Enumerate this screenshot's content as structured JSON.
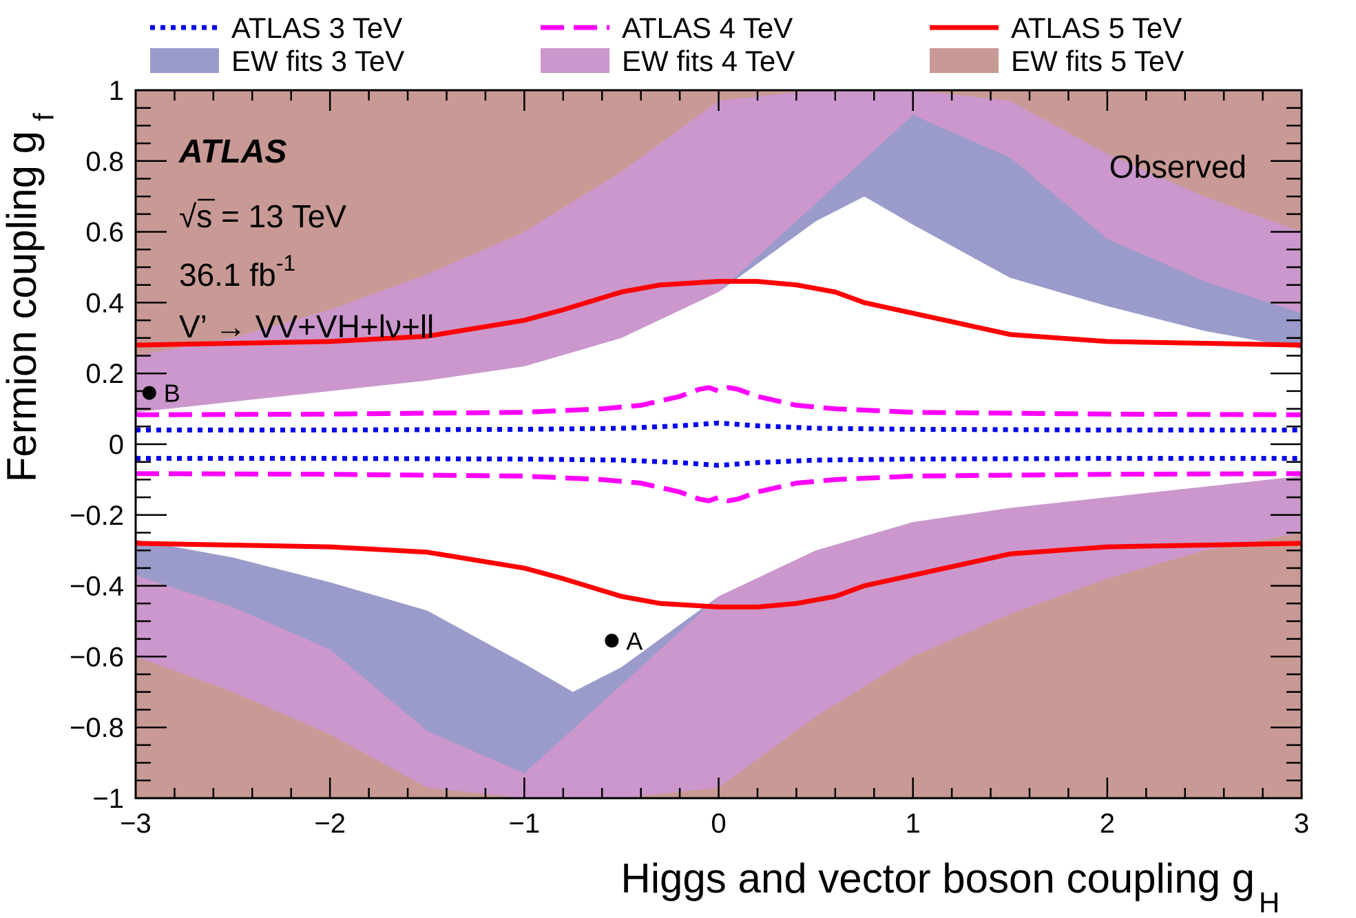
{
  "chart_data": {
    "type": "area",
    "title": "",
    "xlabel": "Higgs and vector boson coupling g",
    "xlabel_sub": "H",
    "ylabel": "Fermion coupling g",
    "ylabel_sub": "f",
    "xlim": [
      -3,
      3
    ],
    "ylim": [
      -1,
      1
    ],
    "x_ticks": [
      -3,
      -2,
      -1,
      0,
      1,
      2,
      3
    ],
    "x_tick_labels": [
      "−3",
      "−2",
      "−1",
      "0",
      "1",
      "2",
      "3"
    ],
    "y_ticks": [
      -1,
      -0.8,
      -0.6,
      -0.4,
      -0.2,
      0,
      0.2,
      0.4,
      0.6,
      0.8,
      1
    ],
    "y_tick_labels": [
      "−1",
      "−0.8",
      "−0.6",
      "−0.4",
      "−0.2",
      "0",
      "0.2",
      "0.4",
      "0.6",
      "0.8",
      "1"
    ],
    "grid": false,
    "legend_position": "top, above plot, three columns",
    "annotations": {
      "experiment": "ATLAS",
      "energy_sqrt": "√",
      "energy_rest": "s = 13 TeV",
      "lumi": "36.1 fb",
      "lumi_sup": "-1",
      "process": "V’ → VV+VH+lν+ll",
      "status": "Observed"
    },
    "points": [
      {
        "label": "A",
        "x": -0.55,
        "y": -0.555
      },
      {
        "label": "B",
        "x": -2.93,
        "y": 0.145
      }
    ],
    "bands": [
      {
        "name": "EW fits 5 TeV",
        "color": "#c99a95",
        "x": [
          -3,
          -2.5,
          -2,
          -1.5,
          -1,
          -0.5,
          0,
          0.5,
          1,
          1.5,
          2,
          2.5,
          3
        ],
        "upper": [
          1,
          1,
          1,
          1,
          1,
          1,
          1,
          1,
          1,
          1,
          1,
          1,
          1
        ],
        "lower": [
          -1,
          -1,
          -1,
          -1,
          -1,
          -1,
          -1,
          -1,
          -1,
          -1,
          -1,
          -1,
          -1
        ]
      },
      {
        "name": "EW fits 4 TeV",
        "color": "#cb97cc",
        "x": [
          -3,
          -2.5,
          -2,
          -1.5,
          -1,
          -0.5,
          0,
          0.5,
          1,
          1.5,
          2,
          2.5,
          3
        ],
        "upper": [
          0.25,
          0.3,
          0.38,
          0.48,
          0.6,
          0.77,
          0.97,
          1.0,
          1.0,
          0.97,
          0.82,
          0.7,
          0.6
        ],
        "lower": [
          -0.6,
          -0.7,
          -0.82,
          -0.97,
          -1.0,
          -1.0,
          -0.97,
          -0.77,
          -0.6,
          -0.48,
          -0.38,
          -0.3,
          -0.25
        ]
      },
      {
        "name": "EW fits 3 TeV",
        "color": "#9b9bcb",
        "x": [
          -3,
          -2.5,
          -2,
          -1.5,
          -1,
          -0.5,
          0,
          0.5,
          1,
          1.5,
          2,
          2.5,
          3
        ],
        "upper": [
          0.09,
          0.12,
          0.15,
          0.18,
          0.22,
          0.3,
          0.43,
          0.68,
          0.93,
          0.81,
          0.58,
          0.46,
          0.37
        ],
        "lower": [
          -0.37,
          -0.46,
          -0.58,
          -0.81,
          -0.93,
          -0.68,
          -0.43,
          -0.3,
          -0.22,
          -0.18,
          -0.15,
          -0.12,
          -0.09
        ]
      },
      {
        "name": "",
        "color": "#ffffff",
        "x": [
          -3,
          -2.5,
          -2,
          -1.5,
          -1,
          -0.75,
          -0.5,
          0,
          0.5,
          0.75,
          1,
          1.5,
          2,
          2.5,
          3
        ],
        "upper": [
          0.09,
          0.12,
          0.15,
          0.18,
          0.22,
          0.26,
          0.3,
          0.43,
          0.63,
          0.7,
          0.62,
          0.47,
          0.39,
          0.32,
          0.27
        ],
        "lower": [
          -0.27,
          -0.32,
          -0.39,
          -0.47,
          -0.62,
          -0.7,
          -0.63,
          -0.43,
          -0.3,
          -0.26,
          -0.22,
          -0.18,
          -0.15,
          -0.12,
          -0.09
        ]
      }
    ],
    "series": [
      {
        "name": "ATLAS 5 TeV",
        "color": "#ff0000",
        "style": "solid",
        "x": [
          -3,
          -2.5,
          -2,
          -1.5,
          -1,
          -0.8,
          -0.5,
          -0.3,
          0,
          0.2,
          0.4,
          0.6,
          0.75,
          1,
          1.5,
          2,
          2.5,
          3
        ],
        "y": [
          0.28,
          0.285,
          0.29,
          0.305,
          0.35,
          0.38,
          0.43,
          0.45,
          0.46,
          0.46,
          0.45,
          0.43,
          0.4,
          0.37,
          0.31,
          0.29,
          0.285,
          0.28
        ],
        "mirror": true
      },
      {
        "name": "ATLAS 4 TeV",
        "color": "#ff00ff",
        "style": "dashed",
        "x": [
          -3,
          -2,
          -1,
          -0.6,
          -0.4,
          -0.2,
          -0.1,
          -0.05,
          0,
          0.05,
          0.1,
          0.2,
          0.4,
          0.6,
          1,
          2,
          3
        ],
        "y": [
          0.083,
          0.085,
          0.09,
          0.1,
          0.11,
          0.135,
          0.155,
          0.16,
          0.15,
          0.16,
          0.155,
          0.135,
          0.11,
          0.1,
          0.09,
          0.085,
          0.083
        ],
        "mirror": true
      },
      {
        "name": "ATLAS 3 TeV",
        "color": "#0000ee",
        "style": "dotted",
        "x": [
          -3,
          -2,
          -1,
          -0.5,
          -0.2,
          0,
          0.2,
          0.5,
          1,
          2,
          3
        ],
        "y": [
          0.04,
          0.04,
          0.042,
          0.045,
          0.052,
          0.06,
          0.052,
          0.045,
          0.042,
          0.04,
          0.04
        ],
        "mirror": true
      }
    ],
    "legend": [
      {
        "label": "ATLAS 3 TeV",
        "kind": "line",
        "color": "#0000ee",
        "style": "dotted"
      },
      {
        "label": "EW fits 3 TeV",
        "kind": "fill",
        "color": "#9b9bcb"
      },
      {
        "label": "ATLAS 4 TeV",
        "kind": "line",
        "color": "#ff00ff",
        "style": "dashed"
      },
      {
        "label": "EW fits 4 TeV",
        "kind": "fill",
        "color": "#cb97cc"
      },
      {
        "label": "ATLAS 5 TeV",
        "kind": "line",
        "color": "#ff0000",
        "style": "solid"
      },
      {
        "label": "EW fits 5 TeV",
        "kind": "fill",
        "color": "#c99a95"
      }
    ]
  }
}
